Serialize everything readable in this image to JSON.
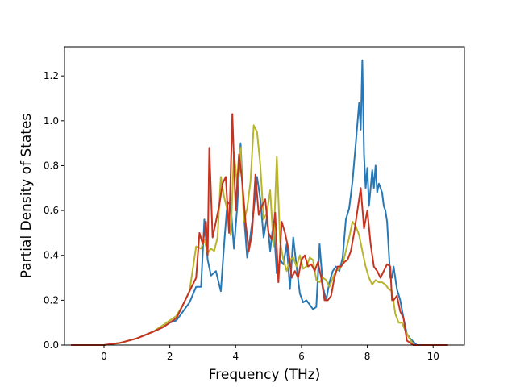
{
  "chart_data": {
    "type": "line",
    "title": "",
    "xlabel": "Frequency (THz)",
    "ylabel": "Partial Density of States",
    "xlim": [
      -1.2,
      10.95
    ],
    "ylim": [
      0.0,
      1.33
    ],
    "xticks": [
      0,
      2,
      4,
      6,
      8,
      10
    ],
    "yticks": [
      0.0,
      0.2,
      0.4,
      0.6,
      0.8,
      1.0,
      1.2
    ],
    "xtick_labels": [
      "0",
      "2",
      "4",
      "6",
      "8",
      "10"
    ],
    "ytick_labels": [
      "0.0",
      "0.2",
      "0.4",
      "0.6",
      "0.8",
      "1.0",
      "1.2"
    ],
    "grid": false,
    "legend": false,
    "series": [
      {
        "color": "#2878b5",
        "x": [
          -1.0,
          0.0,
          0.5,
          1.0,
          1.5,
          1.8,
          2.0,
          2.2,
          2.4,
          2.6,
          2.8,
          2.95,
          3.05,
          3.15,
          3.25,
          3.4,
          3.55,
          3.65,
          3.75,
          3.85,
          3.95,
          4.05,
          4.15,
          4.25,
          4.35,
          4.45,
          4.55,
          4.65,
          4.75,
          4.85,
          4.95,
          5.05,
          5.15,
          5.25,
          5.35,
          5.45,
          5.55,
          5.65,
          5.75,
          5.85,
          5.95,
          6.05,
          6.15,
          6.25,
          6.35,
          6.45,
          6.55,
          6.65,
          6.75,
          6.85,
          6.95,
          7.05,
          7.15,
          7.25,
          7.35,
          7.45,
          7.55,
          7.65,
          7.75,
          7.8,
          7.85,
          7.9,
          7.95,
          8.0,
          8.05,
          8.1,
          8.15,
          8.2,
          8.25,
          8.3,
          8.35,
          8.4,
          8.45,
          8.5,
          8.55,
          8.6,
          8.7,
          8.75,
          8.8,
          8.9,
          9.0,
          9.1,
          9.2,
          9.3,
          9.5,
          10.0,
          10.45
        ],
        "y": [
          0.0,
          0.0,
          0.01,
          0.03,
          0.06,
          0.08,
          0.1,
          0.11,
          0.15,
          0.19,
          0.26,
          0.26,
          0.56,
          0.38,
          0.31,
          0.33,
          0.24,
          0.45,
          0.64,
          0.62,
          0.43,
          0.62,
          0.9,
          0.58,
          0.39,
          0.49,
          0.6,
          0.75,
          0.65,
          0.48,
          0.57,
          0.42,
          0.55,
          0.32,
          0.38,
          0.36,
          0.45,
          0.25,
          0.48,
          0.35,
          0.23,
          0.19,
          0.2,
          0.18,
          0.16,
          0.17,
          0.45,
          0.26,
          0.2,
          0.28,
          0.33,
          0.35,
          0.33,
          0.39,
          0.56,
          0.61,
          0.73,
          0.9,
          1.08,
          0.96,
          1.27,
          0.85,
          0.7,
          0.79,
          0.62,
          0.7,
          0.78,
          0.7,
          0.8,
          0.68,
          0.72,
          0.7,
          0.68,
          0.62,
          0.6,
          0.55,
          0.3,
          0.3,
          0.35,
          0.25,
          0.2,
          0.12,
          0.05,
          0.03,
          0.0,
          0.0,
          0.0
        ]
      },
      {
        "color": "#b8b42c",
        "x": [
          -1.0,
          0.0,
          0.5,
          1.0,
          1.5,
          1.8,
          2.0,
          2.2,
          2.4,
          2.6,
          2.8,
          2.95,
          3.05,
          3.15,
          3.25,
          3.35,
          3.45,
          3.55,
          3.65,
          3.75,
          3.85,
          3.95,
          4.05,
          4.15,
          4.25,
          4.35,
          4.45,
          4.55,
          4.65,
          4.75,
          4.85,
          4.95,
          5.05,
          5.15,
          5.25,
          5.35,
          5.45,
          5.55,
          5.65,
          5.75,
          5.85,
          5.95,
          6.05,
          6.15,
          6.25,
          6.35,
          6.45,
          6.55,
          6.65,
          6.75,
          6.85,
          6.95,
          7.05,
          7.15,
          7.25,
          7.35,
          7.45,
          7.55,
          7.65,
          7.75,
          7.85,
          7.95,
          8.05,
          8.15,
          8.25,
          8.35,
          8.45,
          8.55,
          8.65,
          8.75,
          8.85,
          8.95,
          9.05,
          9.2,
          9.4,
          10.0,
          10.45
        ],
        "y": [
          0.0,
          0.0,
          0.01,
          0.03,
          0.06,
          0.09,
          0.11,
          0.13,
          0.18,
          0.24,
          0.44,
          0.43,
          0.47,
          0.41,
          0.43,
          0.42,
          0.48,
          0.75,
          0.66,
          0.6,
          0.49,
          0.86,
          0.71,
          0.88,
          0.55,
          0.61,
          0.73,
          0.98,
          0.95,
          0.8,
          0.56,
          0.59,
          0.69,
          0.44,
          0.84,
          0.46,
          0.38,
          0.33,
          0.38,
          0.39,
          0.35,
          0.4,
          0.34,
          0.35,
          0.39,
          0.38,
          0.29,
          0.28,
          0.3,
          0.29,
          0.26,
          0.3,
          0.33,
          0.34,
          0.36,
          0.42,
          0.48,
          0.55,
          0.53,
          0.49,
          0.42,
          0.35,
          0.3,
          0.27,
          0.29,
          0.28,
          0.28,
          0.27,
          0.25,
          0.24,
          0.14,
          0.1,
          0.1,
          0.05,
          0.0,
          0.0,
          0.0
        ]
      },
      {
        "color": "#c8331f",
        "x": [
          -1.0,
          0.0,
          0.5,
          1.0,
          1.5,
          1.8,
          2.0,
          2.2,
          2.4,
          2.6,
          2.8,
          2.9,
          3.0,
          3.1,
          3.15,
          3.2,
          3.3,
          3.4,
          3.5,
          3.6,
          3.7,
          3.8,
          3.9,
          4.0,
          4.1,
          4.2,
          4.3,
          4.4,
          4.5,
          4.6,
          4.7,
          4.8,
          4.9,
          5.0,
          5.1,
          5.2,
          5.3,
          5.4,
          5.5,
          5.6,
          5.7,
          5.8,
          5.9,
          6.0,
          6.1,
          6.2,
          6.3,
          6.4,
          6.5,
          6.6,
          6.7,
          6.8,
          6.9,
          7.0,
          7.1,
          7.2,
          7.3,
          7.4,
          7.5,
          7.6,
          7.7,
          7.8,
          7.9,
          8.0,
          8.1,
          8.2,
          8.3,
          8.4,
          8.5,
          8.6,
          8.7,
          8.75,
          8.8,
          8.9,
          9.0,
          9.1,
          9.2,
          9.4,
          10.0,
          10.45
        ],
        "y": [
          0.0,
          0.0,
          0.01,
          0.03,
          0.06,
          0.08,
          0.1,
          0.12,
          0.18,
          0.24,
          0.3,
          0.5,
          0.45,
          0.55,
          0.4,
          0.88,
          0.48,
          0.55,
          0.62,
          0.72,
          0.75,
          0.5,
          1.03,
          0.6,
          0.85,
          0.73,
          0.55,
          0.42,
          0.5,
          0.76,
          0.58,
          0.62,
          0.65,
          0.5,
          0.47,
          0.59,
          0.28,
          0.55,
          0.5,
          0.43,
          0.3,
          0.33,
          0.3,
          0.38,
          0.4,
          0.35,
          0.36,
          0.33,
          0.37,
          0.3,
          0.2,
          0.2,
          0.22,
          0.3,
          0.35,
          0.35,
          0.37,
          0.38,
          0.42,
          0.5,
          0.6,
          0.7,
          0.52,
          0.6,
          0.45,
          0.35,
          0.33,
          0.3,
          0.33,
          0.36,
          0.35,
          0.2,
          0.2,
          0.22,
          0.15,
          0.12,
          0.02,
          0.0,
          0.0,
          0.0
        ]
      }
    ]
  }
}
